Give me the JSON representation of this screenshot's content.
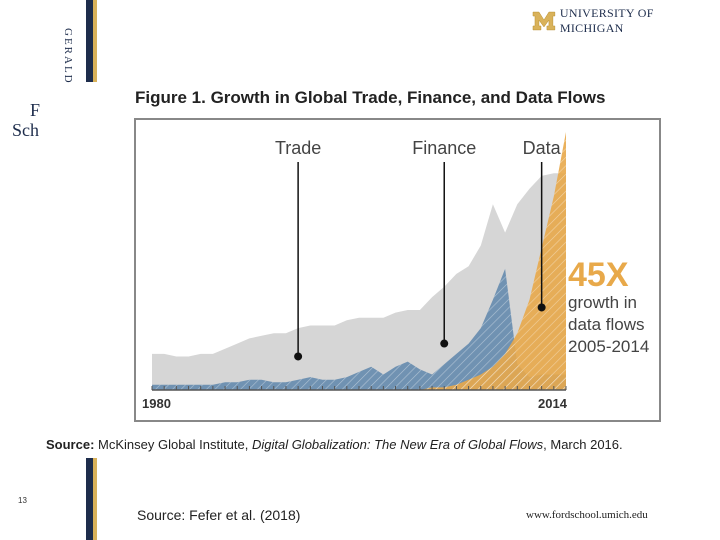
{
  "sidebar": {
    "vertical_text": "GERALD",
    "school_fragment_line1": "F",
    "school_fragment_line2": "Sch"
  },
  "logo": {
    "letter": "M",
    "text": "UNIVERSITY OF MICHIGAN"
  },
  "figure_title": "Figure 1. Growth in Global Trade, Finance, and Data Flows",
  "source_caption": {
    "label": "Source:",
    "publisher": "McKinsey Global Institute,",
    "work": "Digital Globalization: The New Era of Global Flows",
    "date": ", March 2016."
  },
  "footer": {
    "slide_number": "13",
    "source": "Source:  Fefer et al. (2018)",
    "url": "www.fordschool.umich.edu"
  },
  "colors": {
    "navy": "#1e2d4c",
    "gold": "#d9b25a",
    "trade": "#d6d6d6",
    "finance": "#6a8eb0",
    "data": "#e8a94a",
    "highlight": "#e8a94a"
  },
  "chart_data": {
    "type": "area",
    "title": "Figure 1. Growth in Global Trade, Finance, and Data Flows",
    "x_start_label": "1980",
    "x_end_label": "2014",
    "xlim": [
      1980,
      2014
    ],
    "ylim": [
      0,
      100
    ],
    "x": [
      1980,
      1981,
      1982,
      1983,
      1984,
      1985,
      1986,
      1987,
      1988,
      1989,
      1990,
      1991,
      1992,
      1993,
      1994,
      1995,
      1996,
      1997,
      1998,
      1999,
      2000,
      2001,
      2002,
      2003,
      2004,
      2005,
      2006,
      2007,
      2008,
      2009,
      2010,
      2011,
      2012,
      2013,
      2014
    ],
    "series": [
      {
        "name": "Trade",
        "values": [
          14,
          14,
          13,
          13,
          14,
          14,
          16,
          18,
          20,
          21,
          22,
          22,
          24,
          25,
          25,
          25,
          27,
          28,
          28,
          28,
          30,
          31,
          31,
          36,
          40,
          45,
          48,
          56,
          72,
          61,
          72,
          78,
          83,
          84,
          84
        ]
      },
      {
        "name": "Finance",
        "values": [
          2,
          2,
          2,
          2,
          2,
          2,
          3,
          3,
          4,
          4,
          3,
          3,
          4,
          5,
          4,
          4,
          5,
          7,
          9,
          6,
          9,
          11,
          8,
          6,
          10,
          14,
          18,
          24,
          35,
          47,
          10,
          5,
          6,
          6,
          6
        ]
      },
      {
        "name": "Data",
        "values": [
          0,
          0,
          0,
          0,
          0,
          0,
          0,
          0,
          0,
          0,
          0,
          0,
          0,
          0,
          0,
          0,
          0,
          0,
          0,
          0,
          0,
          0,
          0,
          1,
          1,
          2,
          4,
          6,
          9,
          14,
          22,
          35,
          55,
          75,
          100
        ]
      }
    ],
    "annotations": [
      {
        "label": "Trade",
        "x": 1992,
        "y": 13
      },
      {
        "label": "Finance",
        "x": 2004,
        "y": 18
      },
      {
        "label": "Data",
        "x": 2012,
        "y": 32
      }
    ],
    "callout": {
      "big": "45X",
      "lines": [
        "growth in",
        "data flows",
        "2005-2014"
      ]
    }
  }
}
